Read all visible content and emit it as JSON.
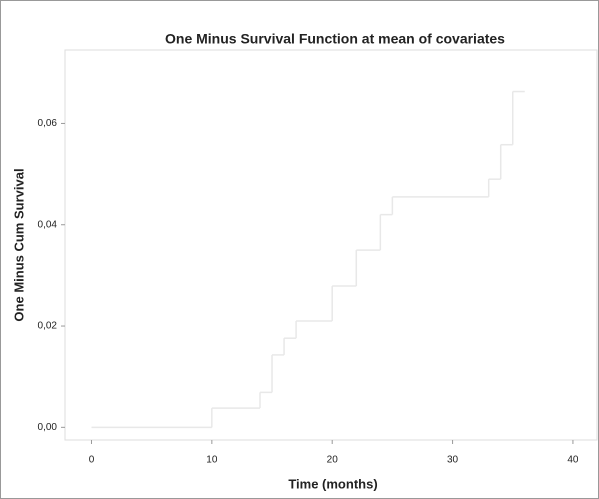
{
  "chart_data": {
    "type": "line",
    "step": "post",
    "title": "One Minus Survival Function at mean of covariates",
    "x_label": "Time (months)",
    "y_label": "One Minus Cum Survival",
    "x": [
      0,
      10,
      14,
      15,
      16,
      17,
      20,
      22,
      24,
      25,
      33,
      34,
      35,
      36
    ],
    "series": [
      {
        "color": "#e8e8e8",
        "values": [
          0,
          0.0038,
          0.0069,
          0.0143,
          0.0176,
          0.021,
          0.0279,
          0.035,
          0.042,
          0.0455,
          0.049,
          0.0558,
          0.0663,
          0.0663
        ]
      }
    ],
    "xlim": [
      -2.2,
      42
    ],
    "ylim": [
      -0.0025,
      0.0745
    ],
    "xticks": [
      0,
      10,
      20,
      30,
      40
    ],
    "yticks": [
      {
        "value": 0,
        "label": "0,00"
      },
      {
        "value": 0.02,
        "label": "0,02"
      },
      {
        "value": 0.04,
        "label": "0,04"
      },
      {
        "value": 0.06,
        "label": "0,06"
      }
    ]
  }
}
